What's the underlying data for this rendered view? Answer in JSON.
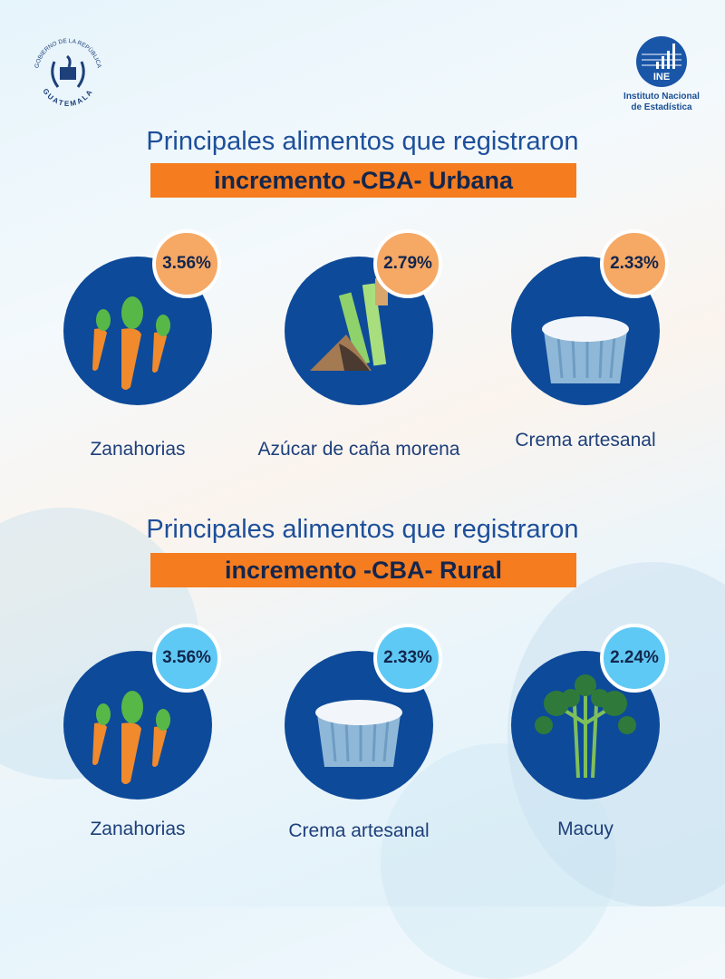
{
  "header": {
    "gov_logo_text": "GOBIERNO DE LA REPÚBLICA GUATEMALA",
    "ine_logo_text": "INE",
    "ine_name_line1": "Instituto Nacional",
    "ine_name_line2": "de Estadística"
  },
  "sections": [
    {
      "title": "Principales alimentos que registraron",
      "highlight": "incremento -CBA- Urbana",
      "items": [
        {
          "name": "Zanahorias",
          "pct": "3.56%"
        },
        {
          "name": "Azúcar de caña morena",
          "pct": "2.79%"
        },
        {
          "name": "Crema artesanal",
          "pct": "2.33%"
        }
      ]
    },
    {
      "title": "Principales alimentos que registraron",
      "highlight": "incremento -CBA- Rural",
      "items": [
        {
          "name": "Zanahorias",
          "pct": "3.56%"
        },
        {
          "name": "Crema artesanal",
          "pct": "2.33%"
        },
        {
          "name": "Macuy",
          "pct": "2.24%"
        }
      ]
    }
  ],
  "colors": {
    "circle": "#0d4a9a",
    "urban_badge": "#f6a865",
    "rural_badge": "#5ec9f4",
    "bar": "#f57c1f"
  }
}
